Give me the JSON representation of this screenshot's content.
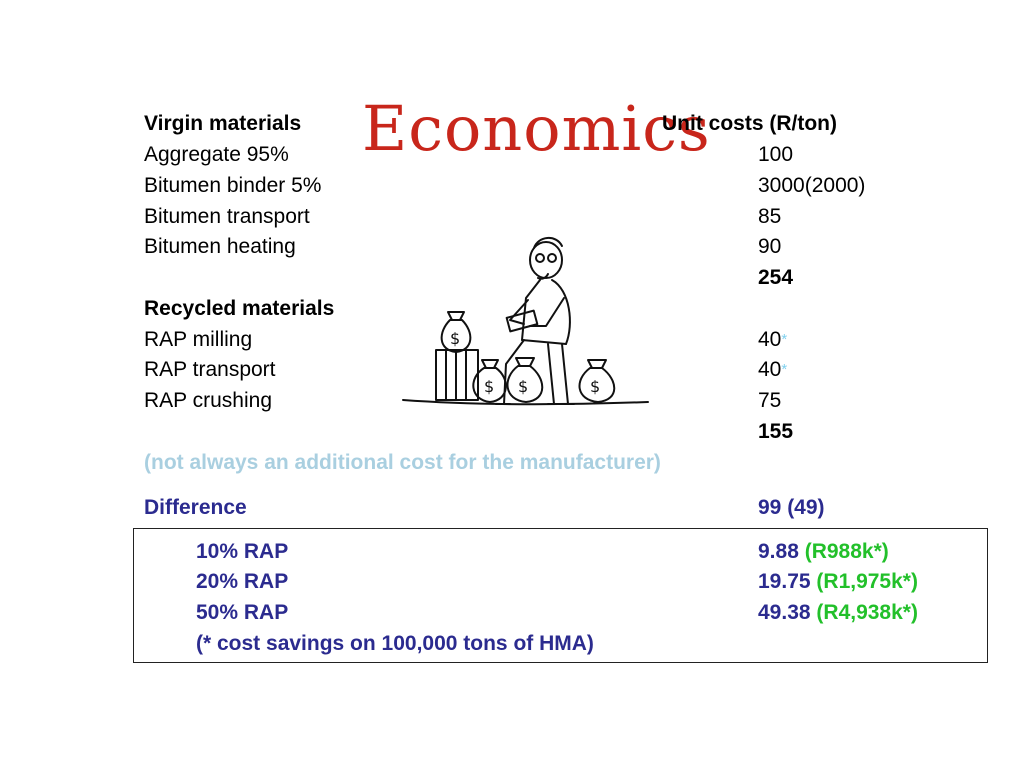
{
  "slide": {
    "title": "Economics",
    "virgin_header": "Virgin materials",
    "cost_header": "Unit costs (R/ton)",
    "virgin_items": [
      {
        "label": "Aggregate 95%",
        "value": "100"
      },
      {
        "label": "Bitumen binder 5%",
        "value": "3000(2000)"
      },
      {
        "label": "Bitumen transport",
        "value": "85"
      },
      {
        "label": "Bitumen heating",
        "value": "90"
      }
    ],
    "virgin_total": "254",
    "recycled_header": "Recycled materials",
    "recycled_items": [
      {
        "label": "RAP milling",
        "value": "40",
        "star": "*"
      },
      {
        "label": "RAP transport",
        "value": "40",
        "star": "*"
      },
      {
        "label": "RAP crushing",
        "value": "75"
      }
    ],
    "recycled_total": "155",
    "note": "(not always an additional cost for the manufacturer)",
    "difference_label": "Difference",
    "difference_value": "99 (49)",
    "savings": [
      {
        "label": "10% RAP",
        "value": "9.88",
        "amount": "(R988k*)"
      },
      {
        "label": "20% RAP",
        "value": "19.75",
        "amount": "(R1,975k*)"
      },
      {
        "label": "50% RAP",
        "value": "49.38",
        "amount": "(R4,938k*)"
      }
    ],
    "footnote": "(* cost savings on 100,000 tons of HMA)"
  },
  "illustration": {
    "icon": "man-with-money-bags-icon"
  },
  "colors": {
    "title": "#c8261b",
    "difference_text": "#2b2b8f",
    "note_text": "#a9cfe0",
    "savings_amount": "#22c02a",
    "asterisk": "#7fd0ee"
  }
}
